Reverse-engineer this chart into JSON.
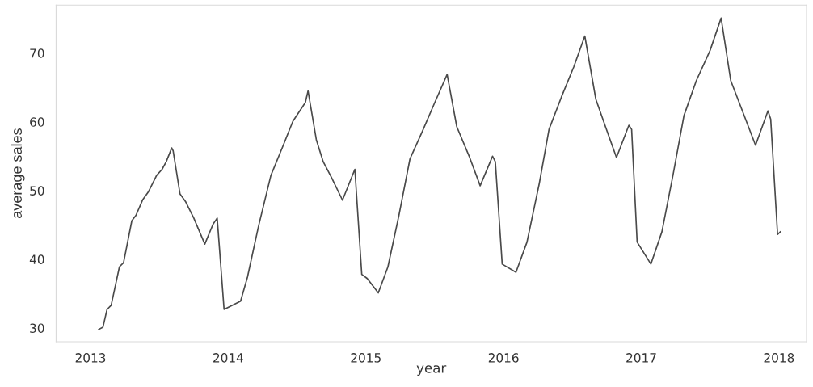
{
  "chart_data": {
    "type": "line",
    "xlabel": "year",
    "ylabel": "average sales",
    "xlim": [
      2012.75,
      2018.2
    ],
    "xticks": [
      {
        "value": 2013,
        "label": "2013"
      },
      {
        "value": 2014,
        "label": "2014"
      },
      {
        "value": 2015,
        "label": "2015"
      },
      {
        "value": 2016,
        "label": "2016"
      },
      {
        "value": 2017,
        "label": "2017"
      },
      {
        "value": 2018,
        "label": "2018"
      }
    ],
    "ylim": [
      28,
      77
    ],
    "yticks": [
      30,
      40,
      50,
      60,
      70
    ],
    "grid": false,
    "series": [
      {
        "color": "#4a4a4a",
        "x": [
          2013.06,
          2013.09,
          2013.12,
          2013.15,
          2013.21,
          2013.24,
          2013.3,
          2013.33,
          2013.38,
          2013.42,
          2013.48,
          2013.52,
          2013.55,
          2013.59,
          2013.6,
          2013.65,
          2013.69,
          2013.75,
          2013.83,
          2013.89,
          2013.92,
          2013.97,
          2014.09,
          2014.14,
          2014.22,
          2014.31,
          2014.4,
          2014.47,
          2014.56,
          2014.58,
          2014.64,
          2014.69,
          2014.75,
          2014.83,
          2014.88,
          2014.92,
          2014.97,
          2015.01,
          2015.09,
          2015.16,
          2015.24,
          2015.32,
          2015.41,
          2015.5,
          2015.59,
          2015.66,
          2015.75,
          2015.83,
          2015.92,
          2015.94,
          2015.99,
          2016.09,
          2016.17,
          2016.26,
          2016.33,
          2016.42,
          2016.51,
          2016.59,
          2016.67,
          2016.74,
          2016.82,
          2016.91,
          2016.93,
          2016.97,
          2017.07,
          2017.15,
          2017.23,
          2017.31,
          2017.4,
          2017.5,
          2017.58,
          2017.65,
          2017.74,
          2017.83,
          2017.92,
          2017.94,
          2017.99,
          2018.01
        ],
        "values": [
          29.8,
          30.1,
          32.7,
          33.3,
          38.9,
          39.5,
          45.6,
          46.4,
          48.7,
          49.8,
          52.2,
          53.1,
          54.2,
          56.2,
          55.8,
          49.5,
          48.4,
          46.0,
          42.2,
          45.1,
          46.0,
          32.7,
          33.9,
          37.4,
          44.8,
          52.2,
          56.6,
          60.1,
          62.8,
          64.5,
          57.4,
          54.2,
          51.9,
          48.6,
          51.1,
          53.1,
          37.8,
          37.2,
          35.1,
          38.9,
          46.4,
          54.6,
          58.6,
          62.8,
          66.9,
          59.3,
          55.0,
          50.7,
          55.0,
          54.2,
          39.3,
          38.1,
          42.5,
          51.1,
          58.9,
          63.6,
          68.0,
          72.5,
          63.3,
          59.3,
          54.8,
          59.5,
          58.9,
          42.5,
          39.3,
          44.0,
          52.2,
          60.9,
          66.0,
          70.4,
          75.1,
          66.0,
          61.3,
          56.6,
          61.6,
          60.4,
          43.6,
          44.0
        ]
      }
    ]
  }
}
